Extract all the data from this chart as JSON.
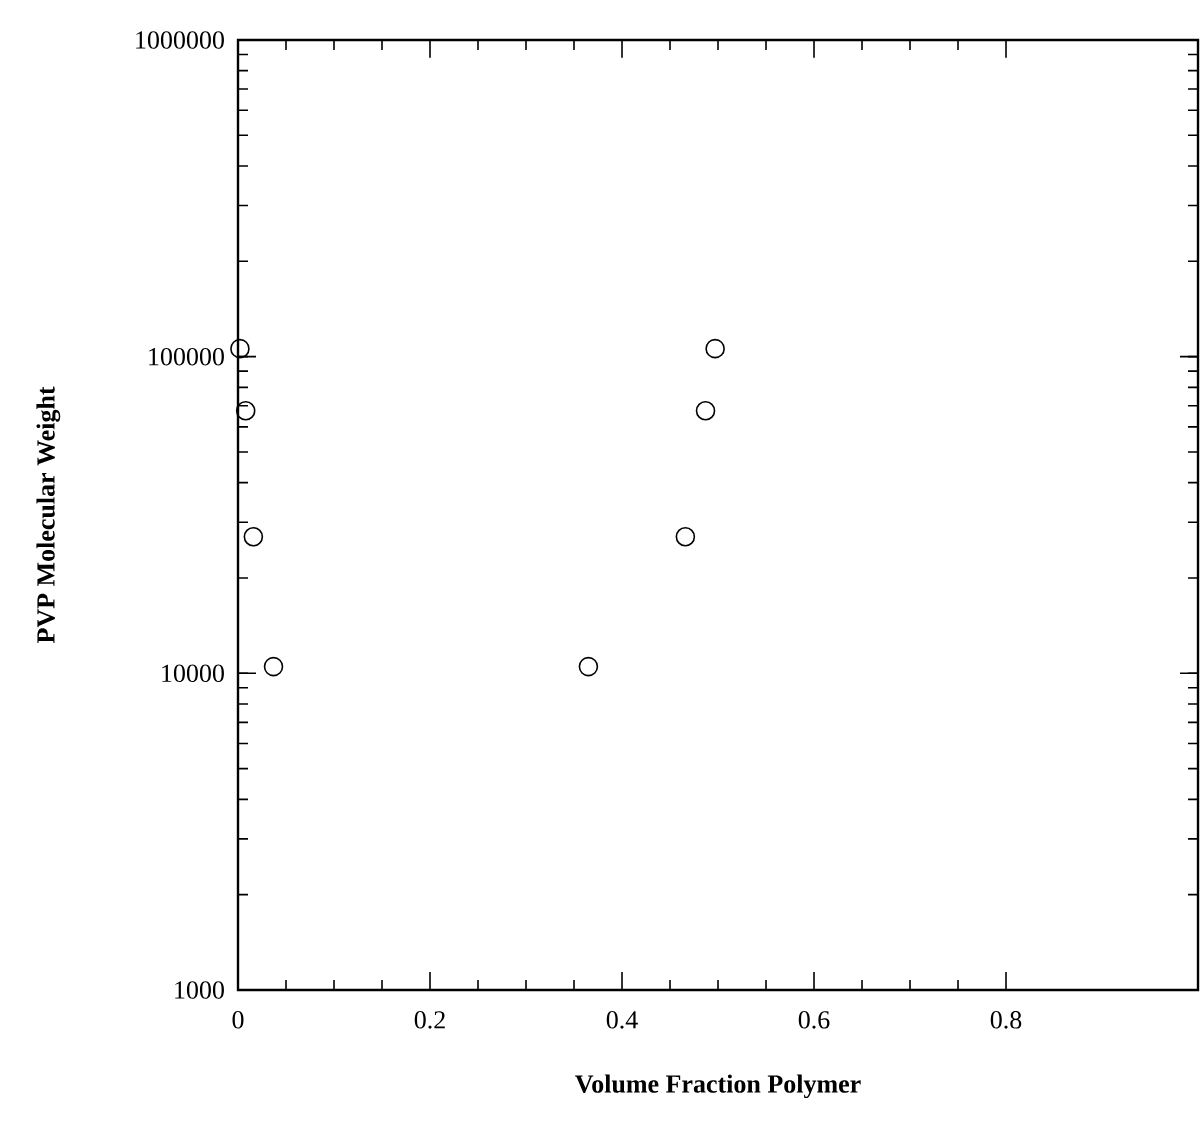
{
  "chart_data": {
    "type": "scatter",
    "xlabel": "Volume  Fraction  Polymer",
    "ylabel": "PVP Molecular Weight",
    "series": [
      {
        "color": "#000000",
        "x": [
          0.002,
          0.008,
          0.016,
          0.037,
          0.497,
          0.487,
          0.466,
          0.365
        ],
        "values": [
          106000,
          67500,
          27000,
          10500,
          106000,
          67500,
          27000,
          10500
        ]
      }
    ],
    "xlim": [
      0,
      1
    ],
    "ylim": [
      1000,
      1000000
    ],
    "xticks": [
      0,
      0.2,
      0.4,
      0.6,
      0.8
    ],
    "yticks": [
      1000,
      10000,
      100000,
      1000000
    ],
    "log": "y",
    "marker": "circle"
  }
}
